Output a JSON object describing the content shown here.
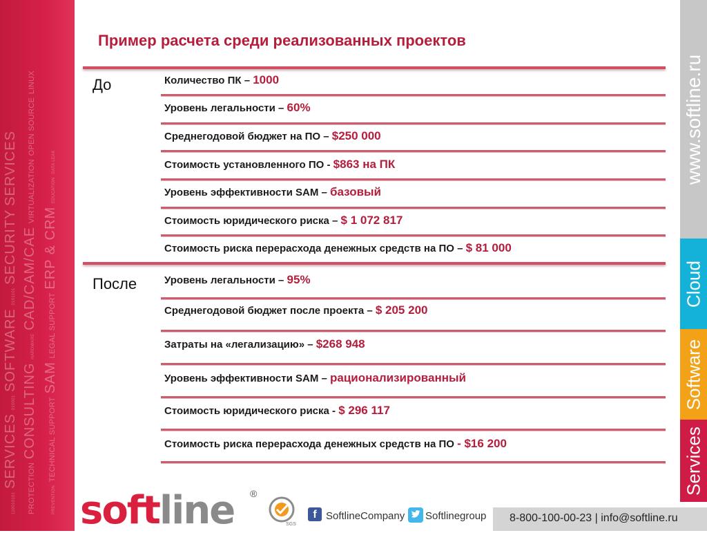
{
  "title": "Пример расчета среди реализованных проектов",
  "sections": {
    "before": {
      "label": "До",
      "rows": [
        {
          "label": "Количество ПК – ",
          "value": "1000"
        },
        {
          "label": "Уровень легальности – ",
          "value": "60%"
        },
        {
          "label": "Среднегодовой бюджет на ПО – ",
          "value": "$250 000"
        },
        {
          "label": "Стоимость установленного ПО - ",
          "value": "$863 на ПК"
        },
        {
          "label": "Уровень эффективности SAM – ",
          "value": "базовый"
        },
        {
          "label": "Стоимость юридического риска – ",
          "value": "$ 1 072 817"
        },
        {
          "label": "Стоимость риска перерасхода денежных средств на ПО – ",
          "value": "$ 81 000"
        }
      ]
    },
    "after": {
      "label": "После",
      "rows": [
        {
          "label": "Уровень легальности – ",
          "value": "95%"
        },
        {
          "label": "Среднегодовой бюджет после проекта – ",
          "value": "$ 205 200"
        },
        {
          "label": "Затраты на «легализацию» – ",
          "value": "$268 948"
        },
        {
          "label": "Уровень эффективности SAM – ",
          "value": "рационализированный"
        },
        {
          "label": "Стоимость юридического риска - ",
          "value": "$ 296 117"
        },
        {
          "label": "Стоимость риска перерасхода денежных средств на ПО ",
          "value": "- $16 200"
        }
      ]
    }
  },
  "left_panel": {
    "line1": "SERVICES",
    "line1b": "SOFTWARE",
    "line1c": "SECURITY",
    "line1d": "SERVICES",
    "line2": "CONSULTING",
    "line2b": "CAD/CAM/CAE",
    "line2c": "OPEN SOURCE",
    "line2d": "LINUX",
    "line3": "SAM",
    "line3b": "ERP & CRM",
    "line3c": "VIRTUALIZATION",
    "line3d": "DATA LEAK",
    "line4": "PROTECTION",
    "line4b": "TECHNICAL SUPPORT",
    "line4c": "LEGAL SUPPORT",
    "line4d": "PREVENTION",
    "line4e": "HARDWARE",
    "line4f": "EDUCATION"
  },
  "tabs": {
    "url": "www.softline.ru",
    "cloud": "Cloud",
    "software": "Software",
    "services": "Services"
  },
  "footer": {
    "logo_soft": "soft",
    "logo_line": "line",
    "registered": "®",
    "sgs": "SGS",
    "facebook_icon": "f",
    "facebook_label": "SoftlineCompany",
    "twitter_label": "Softlinegroup",
    "contact": "8-800-100-00-23 | info@softline.ru"
  },
  "colors": {
    "accent": "#b41d3b",
    "brand_red": "#d9203f",
    "cloud": "#14b1d8",
    "software": "#f3a117",
    "services": "#cf1c46",
    "url_tab": "#c7c7c7"
  }
}
